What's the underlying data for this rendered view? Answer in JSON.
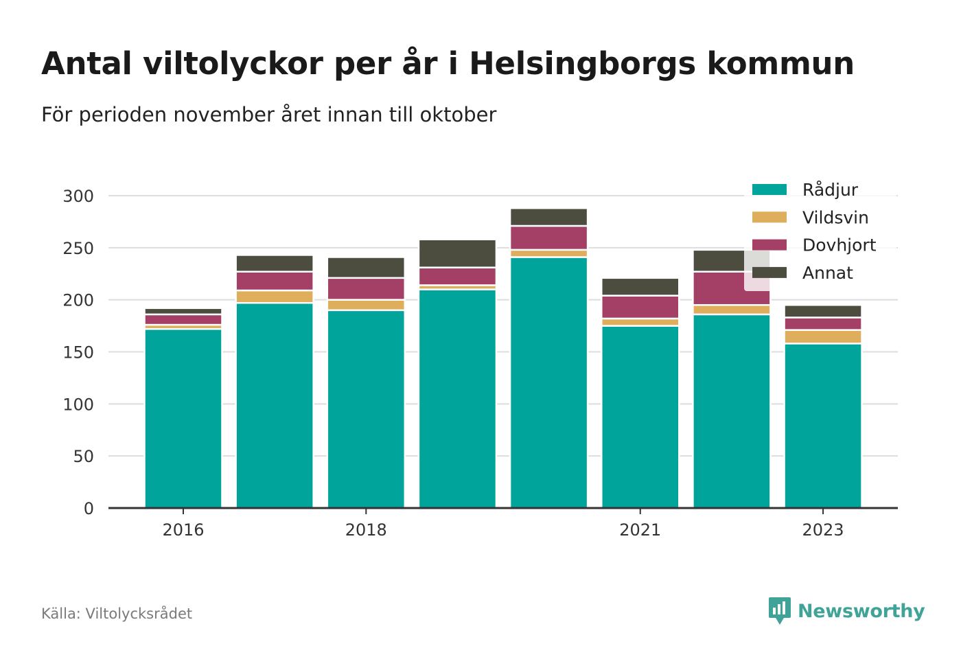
{
  "title": "Antal viltolyckor per år i Helsingborgs kommun",
  "subtitle": "För perioden november året innan till oktober",
  "source": "Källa: Viltolycksrådet",
  "brand": {
    "name": "Newsworthy",
    "icon": "newsworthy-logo-icon",
    "color": "#3fa398"
  },
  "chart_data": {
    "type": "bar",
    "stacked": true,
    "title": "Antal viltolyckor per år i Helsingborgs kommun",
    "subtitle": "För perioden november året innan till oktober",
    "categories": [
      2016,
      2017,
      2018,
      2019,
      2020,
      2021,
      2022,
      2023
    ],
    "x_tick_labels": [
      "2016",
      "2018",
      "2021",
      "2023"
    ],
    "x_tick_values": [
      2016,
      2018,
      2021,
      2023
    ],
    "y_ticks": [
      0,
      50,
      100,
      150,
      200,
      250,
      300
    ],
    "ylim": [
      0,
      300
    ],
    "grid": true,
    "legend_position": "top-right",
    "series": [
      {
        "name": "Rådjur",
        "color": "#00a49a",
        "values": [
          172,
          197,
          190,
          210,
          241,
          175,
          186,
          158
        ]
      },
      {
        "name": "Vildsvin",
        "color": "#deae5c",
        "values": [
          4,
          12,
          10,
          4,
          7,
          7,
          9,
          13
        ]
      },
      {
        "name": "Dovhjort",
        "color": "#a44066",
        "values": [
          10,
          18,
          21,
          17,
          23,
          22,
          32,
          12
        ]
      },
      {
        "name": "Annat",
        "color": "#4d4d3f",
        "values": [
          6,
          16,
          20,
          27,
          17,
          17,
          21,
          12
        ]
      }
    ]
  }
}
